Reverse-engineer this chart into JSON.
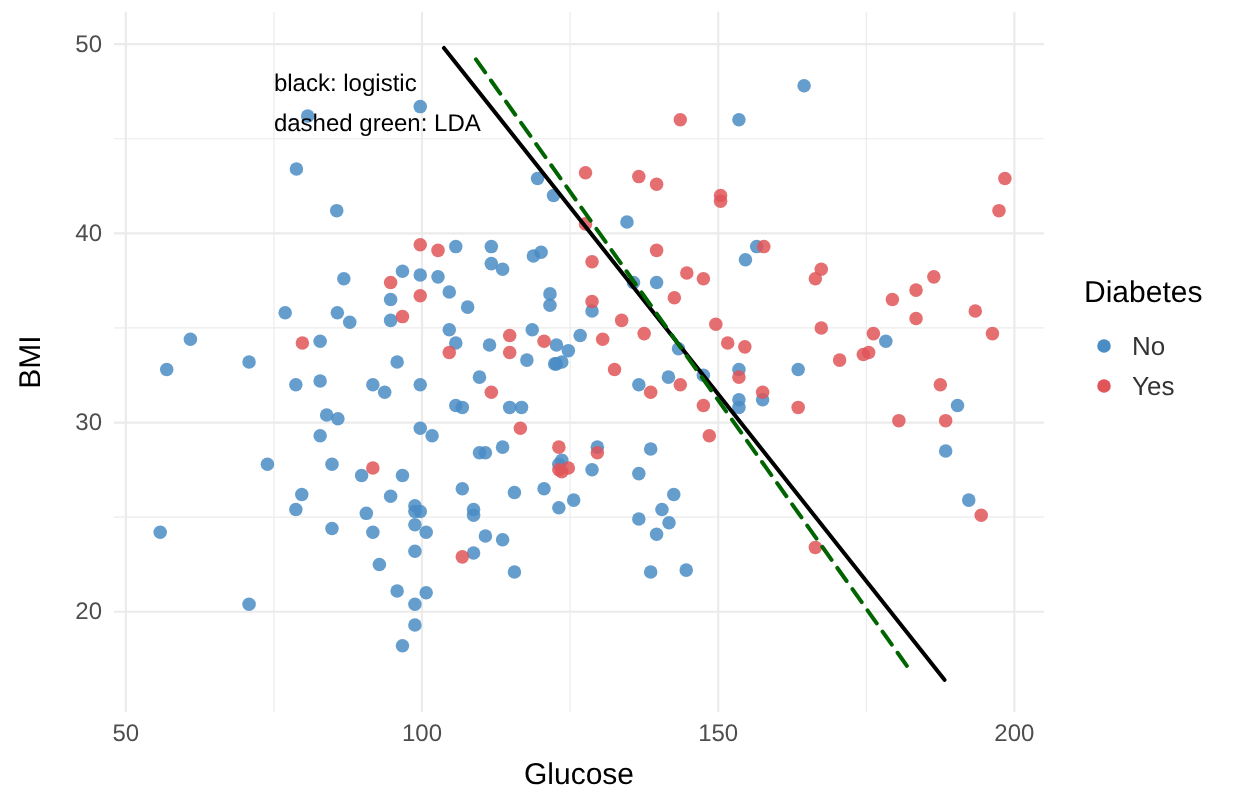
{
  "chart_data": {
    "type": "scatter",
    "xlabel": "Glucose",
    "ylabel": "BMI",
    "legend_title": "Diabetes",
    "legend": "right",
    "grid": true,
    "marker": "circle",
    "xlim": [
      48,
      205
    ],
    "ylim": [
      14.7,
      51.7
    ],
    "xticks": [
      50,
      {
        "value": 75,
        "label": null
      },
      100,
      {
        "value": 125,
        "label": null
      },
      150,
      {
        "value": 175,
        "label": null
      },
      200
    ],
    "yticks": [
      20,
      {
        "value": 25,
        "label": null
      },
      30,
      {
        "value": 35,
        "label": null
      },
      40,
      {
        "value": 45,
        "label": null
      },
      50
    ],
    "annotations": [
      "black: logistic",
      "dashed green: LDA"
    ],
    "series": [
      {
        "name": "No",
        "color": "#4a8cc4",
        "x": [
          80.7,
          78.8,
          85.6,
          99.7,
          119.5,
          122.2,
          105.7,
          111.7,
          111.7,
          113.6,
          118.8,
          120.1,
          86.8,
          96.7,
          99.7,
          102.7,
          94.7,
          104.6,
          107.7,
          94.7,
          76.9,
          85.7,
          87.8,
          60.9,
          104.6,
          118.6,
          121.6,
          121.6,
          56.9,
          70.8,
          82.8,
          78.7,
          82.8,
          91.7,
          93.7,
          95.8,
          99.7,
          105.7,
          111.4,
          117.7,
          122.4,
          109.7,
          105.7,
          106.8,
          114.8,
          116.8,
          83.9,
          85.8,
          82.8,
          99.7,
          101.7,
          73.9,
          84.8,
          89.8,
          96.7,
          109.7,
          110.7,
          113.6,
          123.1,
          79.7,
          78.7,
          94.7,
          98.8,
          98.8,
          99.7,
          106.8,
          108.7,
          108.7,
          115.6,
          120.6,
          123.1,
          55.8,
          84.8,
          90.6,
          91.7,
          98.8,
          100.7,
          98.8,
          92.8,
          108.7,
          110.7,
          113.6,
          115.6,
          95.8,
          100.7,
          98.8,
          70.8,
          98.8,
          96.7,
          164.5,
          153.5,
          134.6,
          154.6,
          156.5,
          135.7,
          139.6,
          128.7,
          126.7,
          178.3,
          124.7,
          122.7,
          122.7,
          123.6,
          136.6,
          141.6,
          143.3,
          147.5,
          153.5,
          153.5,
          153.5,
          157.5,
          163.5,
          190.4,
          188.4,
          192.3,
          123.6,
          129.6,
          128.7,
          138.6,
          136.6,
          125.6,
          136.6,
          142.5,
          140.5,
          141.7,
          139.6,
          138.6,
          144.6
        ],
        "values": [
          46.2,
          43.4,
          41.2,
          46.7,
          42.9,
          42.0,
          39.3,
          39.3,
          38.4,
          38.1,
          38.8,
          39.0,
          37.6,
          38.0,
          37.8,
          37.7,
          36.5,
          36.9,
          36.1,
          35.4,
          35.8,
          35.8,
          35.3,
          34.4,
          34.9,
          34.9,
          36.8,
          36.2,
          32.8,
          33.2,
          34.3,
          32.0,
          32.2,
          32.0,
          31.6,
          33.2,
          32.0,
          34.2,
          34.1,
          33.3,
          33.1,
          32.4,
          30.9,
          30.8,
          30.8,
          30.8,
          30.4,
          30.2,
          29.3,
          29.7,
          29.3,
          27.8,
          27.8,
          27.2,
          27.2,
          28.4,
          28.4,
          28.7,
          27.8,
          26.2,
          25.4,
          26.1,
          25.6,
          25.3,
          25.3,
          26.5,
          25.4,
          25.1,
          26.3,
          26.5,
          25.5,
          24.2,
          24.4,
          25.2,
          24.2,
          24.6,
          24.2,
          23.2,
          22.5,
          23.1,
          24.0,
          23.8,
          22.1,
          21.1,
          21.0,
          20.4,
          20.4,
          19.3,
          18.2,
          47.8,
          46.0,
          40.6,
          38.6,
          39.3,
          37.4,
          37.4,
          35.9,
          34.6,
          34.3,
          33.8,
          34.1,
          33.1,
          33.2,
          32.0,
          32.4,
          33.9,
          32.5,
          32.8,
          31.2,
          30.8,
          31.2,
          32.8,
          30.9,
          28.5,
          25.9,
          28.0,
          28.7,
          27.5,
          28.6,
          27.3,
          25.9,
          24.9,
          26.2,
          25.4,
          24.7,
          24.1,
          22.1,
          22.2
        ]
      },
      {
        "name": "Yes",
        "color": "#e05558",
        "x": [
          99.7,
          102.7,
          94.7,
          99.7,
          96.7,
          79.8,
          104.6,
          114.8,
          114.8,
          120.6,
          111.7,
          116.6,
          91.7,
          123.1,
          123.1,
          106.8,
          143.6,
          127.6,
          136.6,
          139.6,
          150.4,
          150.4,
          127.6,
          198.4,
          197.4,
          139.6,
          157.7,
          128.7,
          144.7,
          147.5,
          142.6,
          166.4,
          167.4,
          186.4,
          183.4,
          179.4,
          183.4,
          193.4,
          196.3,
          128.7,
          133.7,
          149.6,
          167.4,
          137.5,
          130.5,
          176.2,
          132.5,
          138.6,
          143.6,
          147.5,
          148.5,
          153.5,
          157.5,
          163.5,
          151.6,
          154.5,
          170.5,
          174.5,
          175.4,
          187.5,
          180.5,
          188.4,
          194.4,
          166.4,
          124.7,
          123.6,
          129.6
        ],
        "values": [
          39.4,
          39.1,
          37.4,
          36.7,
          35.6,
          34.2,
          33.7,
          34.6,
          33.7,
          34.3,
          31.6,
          29.7,
          27.6,
          28.7,
          27.5,
          22.9,
          46.0,
          43.2,
          43.0,
          42.6,
          42.0,
          41.7,
          40.5,
          42.9,
          41.2,
          39.1,
          39.3,
          38.5,
          37.9,
          37.6,
          36.6,
          37.6,
          38.1,
          37.7,
          37.0,
          36.5,
          35.5,
          35.9,
          34.7,
          36.4,
          35.4,
          35.2,
          35.0,
          34.7,
          34.4,
          34.7,
          32.8,
          31.6,
          32.0,
          30.9,
          29.3,
          32.4,
          31.6,
          30.8,
          34.2,
          34.0,
          33.3,
          33.6,
          33.7,
          32.0,
          30.1,
          30.1,
          25.1,
          23.4,
          27.6,
          27.4,
          28.4
        ]
      },
      {
        "type": "line",
        "marker": "none",
        "color": "#000000",
        "line_style": "solid",
        "x": [
          103.7,
          188.2
        ],
        "values": [
          49.8,
          16.4
        ]
      },
      {
        "type": "line",
        "marker": "none",
        "color": "#006400",
        "line_style": "dashed",
        "x": [
          109.1,
          182.4
        ],
        "values": [
          49.2,
          16.9
        ]
      }
    ]
  }
}
